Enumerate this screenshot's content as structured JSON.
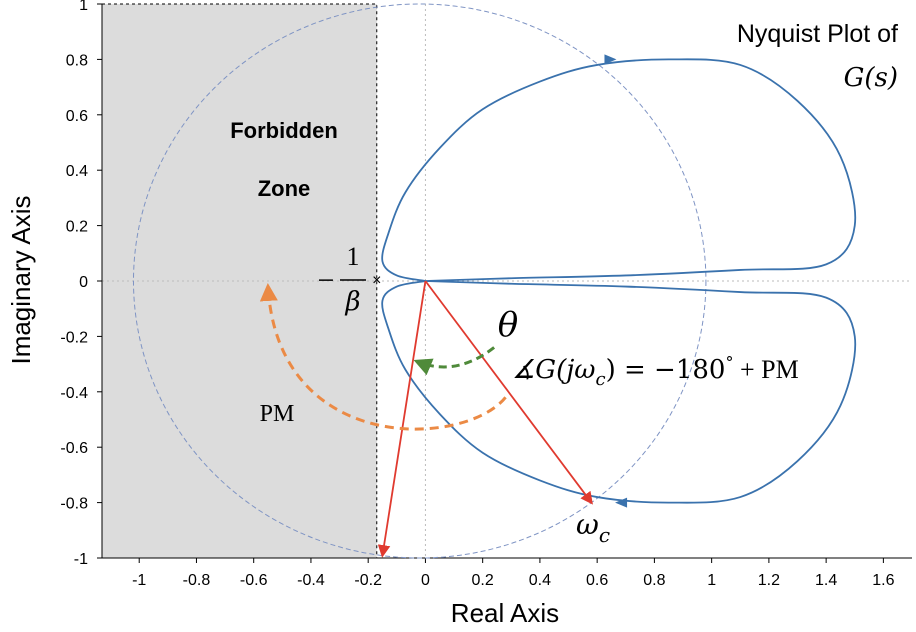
{
  "chart_data": {
    "type": "line",
    "title_line1": "Nyquist Plot of",
    "title_line2": "G(s)",
    "xlabel": "Real Axis",
    "ylabel": "Imaginary Axis",
    "xlim": [
      -1.13,
      1.7
    ],
    "ylim": [
      -1,
      1
    ],
    "x_ticks": [
      -1,
      -0.8,
      -0.6,
      -0.4,
      -0.2,
      0,
      0.2,
      0.4,
      0.6,
      0.8,
      1,
      1.2,
      1.4,
      1.6
    ],
    "y_ticks": [
      1,
      0.8,
      0.6,
      0.4,
      0.2,
      0,
      -0.2,
      -0.4,
      -0.6,
      -0.8,
      -1
    ],
    "grid": true,
    "forbidden_zone": {
      "label_line1": "Forbidden",
      "label_line2": "Zone",
      "x_range": [
        -1.13,
        -0.17
      ],
      "y_range": [
        -1,
        1
      ]
    },
    "critical_point": {
      "x": -0.17,
      "y": 0,
      "label_num": "1",
      "label_den": "β",
      "label_sign": "−"
    },
    "unit_circle": {
      "center": [
        -0.02,
        0
      ],
      "radius": 1.0
    },
    "nyquist_curve": {
      "x": [
        0,
        0.3,
        0.7,
        1.1,
        1.4,
        1.5,
        1.45,
        1.3,
        1.1,
        0.85,
        0.6,
        0.4,
        0.2,
        0.05,
        -0.07,
        -0.13,
        -0.15,
        -0.1,
        0
      ],
      "y": [
        0,
        -0.01,
        -0.02,
        -0.04,
        -0.06,
        -0.2,
        -0.45,
        -0.65,
        -0.78,
        -0.8,
        -0.78,
        -0.72,
        -0.62,
        -0.48,
        -0.32,
        -0.17,
        -0.07,
        -0.02,
        0
      ]
    },
    "crossover_point": {
      "x": 0.58,
      "y": -0.8,
      "label": "ω",
      "label_sub": "c"
    },
    "phase_vector_tip": {
      "x": -0.15,
      "y": -0.99
    },
    "annotations": {
      "theta": "θ",
      "phase_equation_prefix": "∡G(jω",
      "phase_equation_sub": "c",
      "phase_equation_suffix": ") = −180",
      "phase_equation_degree": "°",
      "phase_equation_end": " + PM",
      "pm_label": "PM"
    },
    "colors": {
      "curve": "#3a72ad",
      "unit_circle": "#7f94c4",
      "vector": "#e03a2f",
      "pm_arrow": "#eb8a45",
      "theta_arrow": "#4f8a3a",
      "forbidden_fill": "#dcdcdc",
      "grid": "#bbbbbb"
    }
  }
}
